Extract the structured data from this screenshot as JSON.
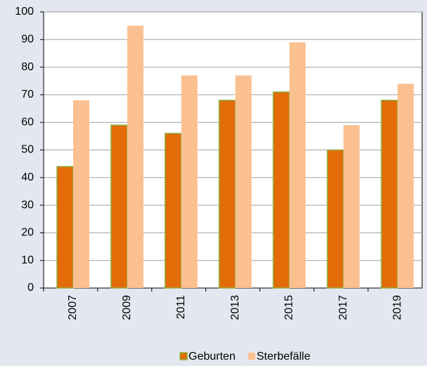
{
  "chart_data": {
    "type": "bar",
    "categories": [
      "2007",
      "2009",
      "2011",
      "2013",
      "2015",
      "2017",
      "2019"
    ],
    "series": [
      {
        "name": "Geburten",
        "color": "#e36c09",
        "edgecolor": "#8cb040",
        "values": [
          44,
          59,
          56,
          68,
          71,
          50,
          68
        ]
      },
      {
        "name": "Sterbefälle",
        "color": "#fac090",
        "values": [
          68,
          95,
          77,
          77,
          89,
          59,
          74
        ]
      }
    ],
    "ylim": [
      0,
      100
    ],
    "yticks": [
      0,
      10,
      20,
      30,
      40,
      50,
      60,
      70,
      80,
      90,
      100
    ],
    "grid": true
  }
}
